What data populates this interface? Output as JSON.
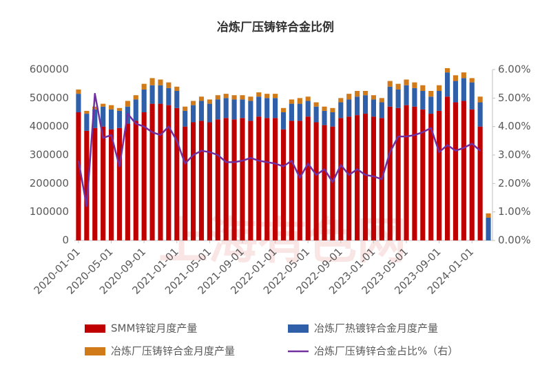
{
  "chart_data": {
    "type": "bar",
    "stacked": true,
    "title": "冶炼厂压铸锌合金比例",
    "watermark": "上海有色网",
    "categories": [
      "2020-01-01",
      null,
      null,
      null,
      "2020-05-01",
      null,
      null,
      null,
      "2020-09-01",
      null,
      null,
      null,
      "2021-01-01",
      null,
      null,
      null,
      "2021-05-01",
      null,
      null,
      null,
      "2021-09-01",
      null,
      null,
      null,
      "2022-01-01",
      null,
      null,
      null,
      "2022-05-01",
      null,
      null,
      null,
      "2022-09-01",
      null,
      null,
      null,
      "2023-01-01",
      null,
      null,
      null,
      "2023-05-01",
      null,
      null,
      null,
      "2023-09-01",
      null,
      null,
      null,
      "2024-01-01",
      null,
      null
    ],
    "series": [
      {
        "name": "SMM锌锭月度产量",
        "color": "#c00000",
        "values": [
          450000,
          385000,
          395000,
          400000,
          390000,
          395000,
          410000,
          420000,
          450000,
          480000,
          480000,
          475000,
          465000,
          400000,
          415000,
          420000,
          415000,
          425000,
          430000,
          425000,
          430000,
          420000,
          435000,
          430000,
          430000,
          390000,
          420000,
          420000,
          435000,
          415000,
          405000,
          400000,
          430000,
          435000,
          440000,
          445000,
          435000,
          430000,
          470000,
          465000,
          475000,
          470000,
          460000,
          445000,
          455000,
          505000,
          485000,
          490000,
          460000,
          400000,
          0
        ]
      },
      {
        "name": "冶炼厂热镀锌合金月度产量",
        "color": "#2e5fa8",
        "values": [
          65000,
          60000,
          65000,
          70000,
          70000,
          60000,
          60000,
          75000,
          80000,
          65000,
          65000,
          60000,
          60000,
          55000,
          60000,
          70000,
          65000,
          70000,
          70000,
          70000,
          65000,
          70000,
          70000,
          70000,
          70000,
          60000,
          60000,
          60000,
          55000,
          55000,
          50000,
          50000,
          55000,
          60000,
          65000,
          65000,
          60000,
          55000,
          70000,
          65000,
          70000,
          65000,
          65000,
          60000,
          70000,
          85000,
          75000,
          80000,
          95000,
          85000,
          80000
        ]
      },
      {
        "name": "冶炼厂压铸锌合金月度产量",
        "color": "#d07a1a",
        "values": [
          15000,
          10000,
          10000,
          10000,
          15000,
          10000,
          20000,
          15000,
          20000,
          25000,
          20000,
          20000,
          15000,
          15000,
          15000,
          15000,
          15000,
          15000,
          15000,
          15000,
          15000,
          15000,
          15000,
          15000,
          15000,
          15000,
          15000,
          20000,
          15000,
          15000,
          15000,
          15000,
          15000,
          20000,
          20000,
          15000,
          15000,
          15000,
          20000,
          20000,
          20000,
          20000,
          20000,
          20000,
          20000,
          15000,
          20000,
          20000,
          15000,
          20000,
          15000
        ]
      },
      {
        "name": "冶炼厂压铸锌合金占比%（右）",
        "color": "#7030a0",
        "type": "line",
        "axis": "y2",
        "values": [
          2.8,
          1.2,
          5.15,
          3.6,
          3.7,
          2.6,
          4.45,
          4.1,
          4.0,
          3.8,
          3.7,
          4.0,
          3.5,
          2.7,
          3.0,
          3.15,
          3.1,
          3.0,
          2.75,
          2.75,
          2.8,
          2.9,
          2.8,
          2.75,
          2.7,
          2.6,
          2.8,
          2.2,
          2.7,
          2.3,
          2.5,
          2.05,
          2.65,
          2.3,
          2.5,
          2.3,
          2.25,
          2.15,
          3.1,
          3.65,
          3.65,
          3.7,
          3.8,
          3.95,
          3.1,
          3.35,
          3.15,
          3.25,
          3.4,
          3.15,
          null
        ]
      }
    ],
    "ylim": [
      0,
      600000
    ],
    "yticks": [
      0,
      100000,
      200000,
      300000,
      400000,
      500000,
      600000
    ],
    "y2lim": [
      0,
      6
    ],
    "y2ticks": [
      {
        "value": 0,
        "label": "0.00%"
      },
      {
        "value": 1,
        "label": "1.00%"
      },
      {
        "value": 2,
        "label": "2.00%"
      },
      {
        "value": 3,
        "label": "3.00%"
      },
      {
        "value": 4,
        "label": "4.00%"
      },
      {
        "value": 5,
        "label": "5.00%"
      },
      {
        "value": 6,
        "label": "6.00%"
      }
    ],
    "legend": "bottom"
  }
}
